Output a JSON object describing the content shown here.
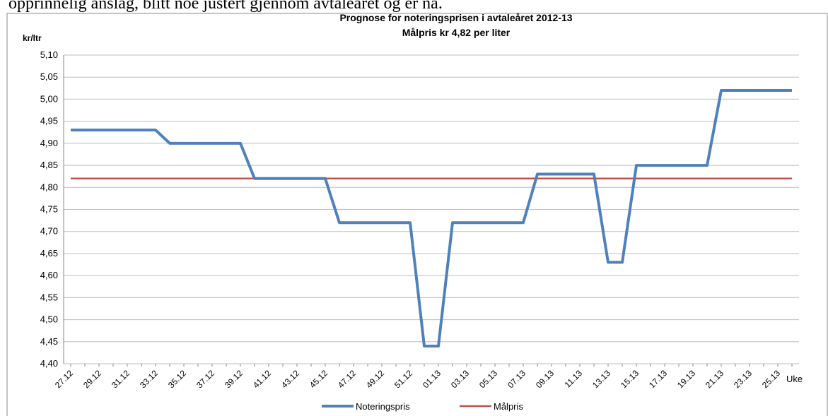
{
  "document_text": "opprinnelig anslag, blitt noe justert gjennom avtaleåret og er nå.",
  "chart_data": {
    "type": "line",
    "title": "Prognose for noteringsprisen i  avtaleåret 2012-13",
    "subtitle": "Målpris kr 4,82 per liter",
    "y_label": "kr/ltr",
    "x_label": "Uke",
    "categories": [
      "27.12",
      null,
      "29.12",
      null,
      "31.12",
      null,
      "33.12",
      null,
      "35.12",
      null,
      "37.12",
      null,
      "39.12",
      null,
      "41.12",
      null,
      "43.12",
      null,
      "45.12",
      null,
      "47.12",
      null,
      "49.12",
      null,
      "51.12",
      null,
      "01.13",
      null,
      "03.13",
      null,
      "05.13",
      null,
      "07.13",
      null,
      "09.13",
      null,
      "11.13",
      null,
      "13.13",
      null,
      "15.13",
      null,
      "17.13",
      null,
      "19.13",
      null,
      "21.13",
      null,
      "23.13",
      null,
      "25.13",
      null
    ],
    "series": [
      {
        "name": "Noteringspris",
        "color": "#4f81bd",
        "values": [
          4.93,
          4.93,
          4.93,
          4.93,
          4.93,
          4.93,
          4.93,
          4.9,
          4.9,
          4.9,
          4.9,
          4.9,
          4.9,
          4.82,
          4.82,
          4.82,
          4.82,
          4.82,
          4.82,
          4.72,
          4.72,
          4.72,
          4.72,
          4.72,
          4.72,
          4.44,
          4.44,
          4.72,
          4.72,
          4.72,
          4.72,
          4.72,
          4.72,
          4.83,
          4.83,
          4.83,
          4.83,
          4.83,
          4.63,
          4.63,
          4.85,
          4.85,
          4.85,
          4.85,
          4.85,
          4.85,
          5.02,
          5.02,
          5.02,
          5.02,
          5.02,
          5.02
        ]
      },
      {
        "name": "Målpris",
        "color": "#c0504d",
        "values": [
          4.82,
          4.82,
          4.82,
          4.82,
          4.82,
          4.82,
          4.82,
          4.82,
          4.82,
          4.82,
          4.82,
          4.82,
          4.82,
          4.82,
          4.82,
          4.82,
          4.82,
          4.82,
          4.82,
          4.82,
          4.82,
          4.82,
          4.82,
          4.82,
          4.82,
          4.82,
          4.82,
          4.82,
          4.82,
          4.82,
          4.82,
          4.82,
          4.82,
          4.82,
          4.82,
          4.82,
          4.82,
          4.82,
          4.82,
          4.82,
          4.82,
          4.82,
          4.82,
          4.82,
          4.82,
          4.82,
          4.82,
          4.82,
          4.82,
          4.82,
          4.82,
          4.82
        ]
      }
    ],
    "ylim": [
      4.4,
      5.1
    ],
    "yticks": [
      {
        "value": 4.4,
        "label": "4,40"
      },
      {
        "value": 4.45,
        "label": "4,45"
      },
      {
        "value": 4.5,
        "label": "4,50"
      },
      {
        "value": 4.55,
        "label": "4,55"
      },
      {
        "value": 4.6,
        "label": "4,60"
      },
      {
        "value": 4.65,
        "label": "4,65"
      },
      {
        "value": 4.7,
        "label": "4,70"
      },
      {
        "value": 4.75,
        "label": "4,75"
      },
      {
        "value": 4.8,
        "label": "4,80"
      },
      {
        "value": 4.85,
        "label": "4,85"
      },
      {
        "value": 4.9,
        "label": "4,90"
      },
      {
        "value": 4.95,
        "label": "4,95"
      },
      {
        "value": 5.0,
        "label": "5,00"
      },
      {
        "value": 5.05,
        "label": "5,05"
      },
      {
        "value": 5.1,
        "label": "5,10"
      }
    ],
    "grid": true,
    "legend": "bottom"
  }
}
